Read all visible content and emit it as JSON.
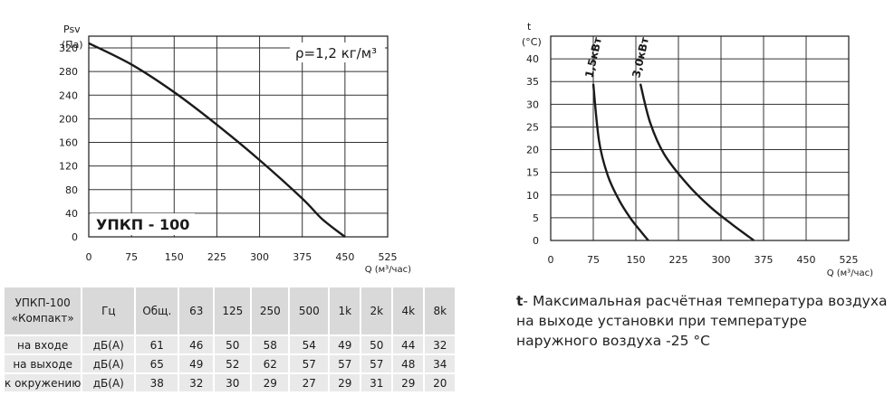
{
  "charts": [
    {
      "type": "line",
      "title": "",
      "model_label": "УПКП - 100",
      "annotation": "ρ=1,2 кг/м³",
      "ylabel_line1": "Psv",
      "ylabel_line2": "(Па)",
      "xlabel": "Q (м³/час)",
      "xlim": [
        0,
        525
      ],
      "ylim": [
        0,
        340
      ],
      "x_ticks": [
        0,
        75,
        150,
        225,
        300,
        375,
        450,
        525
      ],
      "y_ticks": [
        0,
        40,
        80,
        120,
        160,
        200,
        240,
        280,
        320
      ],
      "grid": true,
      "series": [
        {
          "x": [
            0,
            75,
            150,
            225,
            300,
            375,
            410,
            450
          ],
          "y": [
            328,
            292,
            245,
            190,
            130,
            65,
            30,
            0
          ]
        }
      ]
    },
    {
      "type": "line",
      "title": "",
      "ylabel_line1": "t",
      "ylabel_line2": "(°C)",
      "xlabel": "Q (м³/час)",
      "xlim": [
        0,
        525
      ],
      "ylim": [
        0,
        45
      ],
      "x_ticks": [
        0,
        75,
        150,
        225,
        300,
        375,
        450,
        525
      ],
      "y_ticks": [
        0,
        5,
        10,
        15,
        20,
        25,
        30,
        35,
        40
      ],
      "grid": true,
      "series": [
        {
          "name": "1,5кВт",
          "x": [
            75,
            85,
            100,
            120,
            140,
            160,
            172
          ],
          "y": [
            34.5,
            22,
            14.5,
            9,
            5,
            1.8,
            0
          ]
        },
        {
          "name": "3,0кВт",
          "x": [
            158,
            175,
            200,
            240,
            280,
            320,
            358
          ],
          "y": [
            34.5,
            26,
            19,
            12.5,
            7.5,
            3.5,
            0
          ]
        }
      ]
    }
  ],
  "table": {
    "model_line1": "УПКП-100",
    "model_line2": "«Компакт»",
    "headers": [
      "Гц",
      "Общ.",
      "63",
      "125",
      "250",
      "500",
      "1k",
      "2k",
      "4k",
      "8k"
    ],
    "rows": [
      {
        "label": "на входе",
        "cells": [
          "дБ(А)",
          "61",
          "46",
          "50",
          "58",
          "54",
          "49",
          "50",
          "44",
          "32"
        ]
      },
      {
        "label": "на выходе",
        "cells": [
          "дБ(А)",
          "65",
          "49",
          "52",
          "62",
          "57",
          "57",
          "57",
          "48",
          "34"
        ]
      },
      {
        "label": "к окружению",
        "cells": [
          "дБ(А)",
          "38",
          "32",
          "30",
          "29",
          "27",
          "29",
          "31",
          "29",
          "20"
        ]
      }
    ]
  },
  "note": {
    "symbol": "t",
    "text": "- Максимальная расчётная температура воздуха на выходе установки при температуре наружного воздуха -25 °C"
  }
}
